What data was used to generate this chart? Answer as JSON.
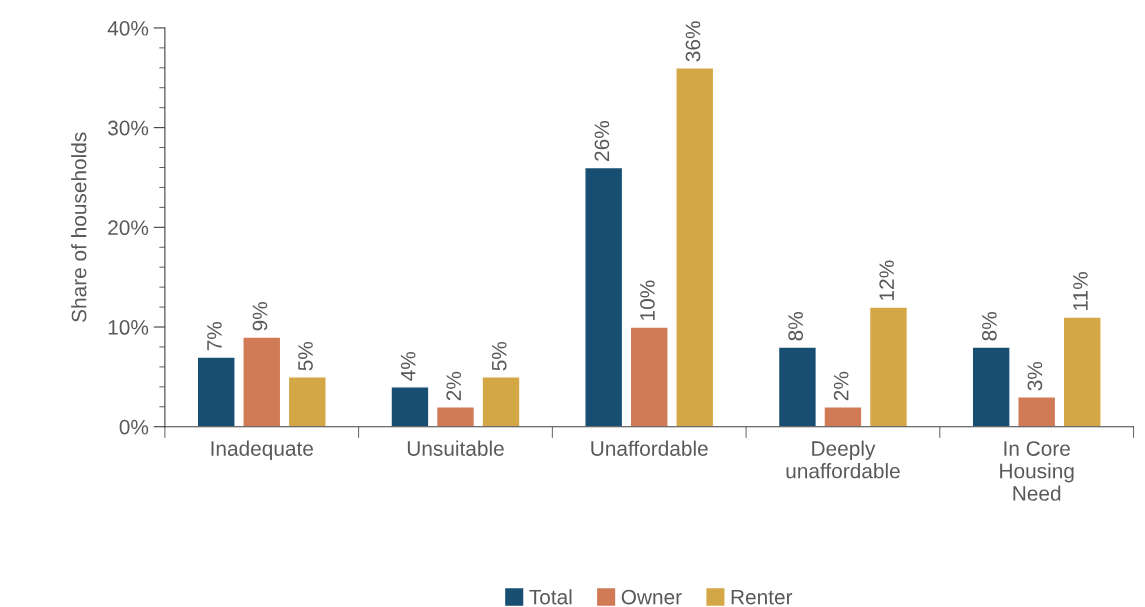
{
  "chart_data": {
    "type": "bar",
    "ylabel": "Share of households",
    "categories": [
      "Inadequate",
      "Unsuitable",
      "Unaffordable",
      "Deeply\nunaffordable",
      "In Core\nHousing\nNeed"
    ],
    "series": [
      {
        "name": "Total",
        "color": "#174e72",
        "values": [
          7,
          4,
          26,
          8,
          8
        ],
        "value_labels": [
          "7%",
          "4%",
          "26%",
          "8%",
          "8%"
        ]
      },
      {
        "name": "Owner",
        "color": "#d07a56",
        "values": [
          9,
          2,
          10,
          2,
          3
        ],
        "value_labels": [
          "9%",
          "2%",
          "10%",
          "2%",
          "3%"
        ]
      },
      {
        "name": "Renter",
        "color": "#d4a746",
        "values": [
          5,
          5,
          36,
          12,
          11
        ],
        "value_labels": [
          "5%",
          "5%",
          "36%",
          "12%",
          "11%"
        ]
      }
    ],
    "ylim": [
      0,
      40
    ],
    "yticks": [
      {
        "value": 0,
        "label": "0%"
      },
      {
        "value": 2,
        "label": null
      },
      {
        "value": 4,
        "label": null
      },
      {
        "value": 6,
        "label": null
      },
      {
        "value": 8,
        "label": null
      },
      {
        "value": 10,
        "label": "10%"
      },
      {
        "value": 12,
        "label": null
      },
      {
        "value": 14,
        "label": null
      },
      {
        "value": 16,
        "label": null
      },
      {
        "value": 18,
        "label": null
      },
      {
        "value": 20,
        "label": "20%"
      },
      {
        "value": 22,
        "label": null
      },
      {
        "value": 24,
        "label": null
      },
      {
        "value": 26,
        "label": null
      },
      {
        "value": 28,
        "label": null
      },
      {
        "value": 30,
        "label": "30%"
      },
      {
        "value": 32,
        "label": null
      },
      {
        "value": 34,
        "label": null
      },
      {
        "value": 36,
        "label": null
      },
      {
        "value": 38,
        "label": null
      },
      {
        "value": 40,
        "label": "40%"
      }
    ],
    "grid": false,
    "legend": "bottom"
  }
}
